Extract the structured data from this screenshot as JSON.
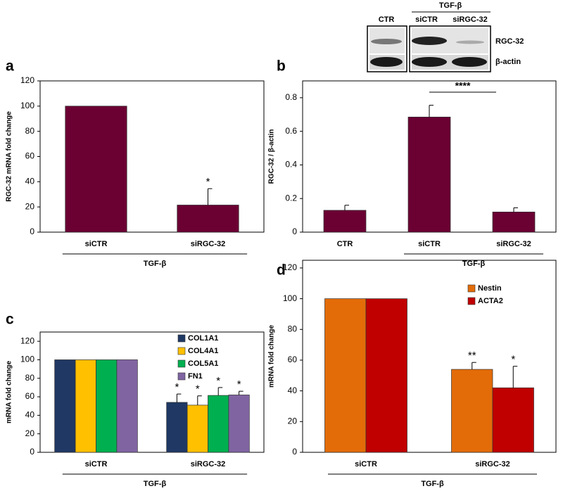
{
  "blot": {
    "header": "TGF-β",
    "lanes": [
      "CTR",
      "siCTR",
      "siRGC-32"
    ],
    "rows": [
      "RGC-32",
      "β-actin"
    ]
  },
  "chart_data": [
    {
      "type": "bar",
      "panel": "a",
      "ylabel": "RGC-32 mRNA fold change",
      "categories": [
        "siCTR",
        "siRGC-32"
      ],
      "series": [
        {
          "color": "#6b0033",
          "values": [
            100,
            21.5
          ],
          "errors": [
            0,
            13
          ],
          "significance": [
            null,
            "*"
          ]
        }
      ],
      "ylim": [
        0,
        120
      ],
      "yticks": [
        0,
        20,
        40,
        60,
        80,
        100,
        120
      ],
      "group_label": "TGF-β"
    },
    {
      "type": "bar",
      "panel": "b",
      "ylabel": "RGC-32 / β-actin",
      "categories": [
        "CTR",
        "siCTR",
        "siRGC-32"
      ],
      "series": [
        {
          "color": "#6b0033",
          "values": [
            0.13,
            0.685,
            0.12
          ],
          "errors": [
            0.03,
            0.07,
            0.025
          ]
        }
      ],
      "ylim": [
        0,
        0.9
      ],
      "yticks": [
        0,
        0.2,
        0.4,
        0.6,
        0.8
      ],
      "group_label": "TGF-β",
      "comparison_label": "****"
    },
    {
      "type": "bar",
      "panel": "c",
      "ylabel": "mRNA fold change",
      "categories": [
        "siCTR",
        "siRGC-32"
      ],
      "series": [
        {
          "name": "COL1A1",
          "color": "#1f3864",
          "values": [
            100,
            54
          ],
          "errors": [
            0,
            9
          ],
          "significance": [
            null,
            "*"
          ]
        },
        {
          "name": "COL4A1",
          "color": "#ffc000",
          "values": [
            100,
            51
          ],
          "errors": [
            0,
            10
          ],
          "significance": [
            null,
            "*"
          ]
        },
        {
          "name": "COL5A1",
          "color": "#00b050",
          "values": [
            100,
            61.5
          ],
          "errors": [
            0,
            8.5
          ],
          "significance": [
            null,
            "*"
          ]
        },
        {
          "name": "FN1",
          "color": "#8064a2",
          "values": [
            100,
            62
          ],
          "errors": [
            0,
            4
          ],
          "significance": [
            null,
            "*"
          ]
        }
      ],
      "ylim": [
        0,
        130
      ],
      "yticks": [
        0,
        20,
        40,
        60,
        80,
        100,
        120
      ],
      "group_label": "TGF-β"
    },
    {
      "type": "bar",
      "panel": "d",
      "ylabel": "mRNA fold change",
      "categories": [
        "siCTR",
        "siRGC-32"
      ],
      "series": [
        {
          "name": "Nestin",
          "color": "#e36c09",
          "values": [
            100,
            54
          ],
          "errors": [
            0,
            4.5
          ],
          "significance": [
            null,
            "**"
          ]
        },
        {
          "name": "ACTA2",
          "color": "#c00000",
          "values": [
            100,
            42
          ],
          "errors": [
            0,
            14
          ],
          "significance": [
            null,
            "*"
          ]
        }
      ],
      "ylim": [
        0,
        125
      ],
      "yticks": [
        0,
        20,
        40,
        60,
        80,
        100,
        120
      ],
      "group_label": "TGF-β"
    }
  ]
}
